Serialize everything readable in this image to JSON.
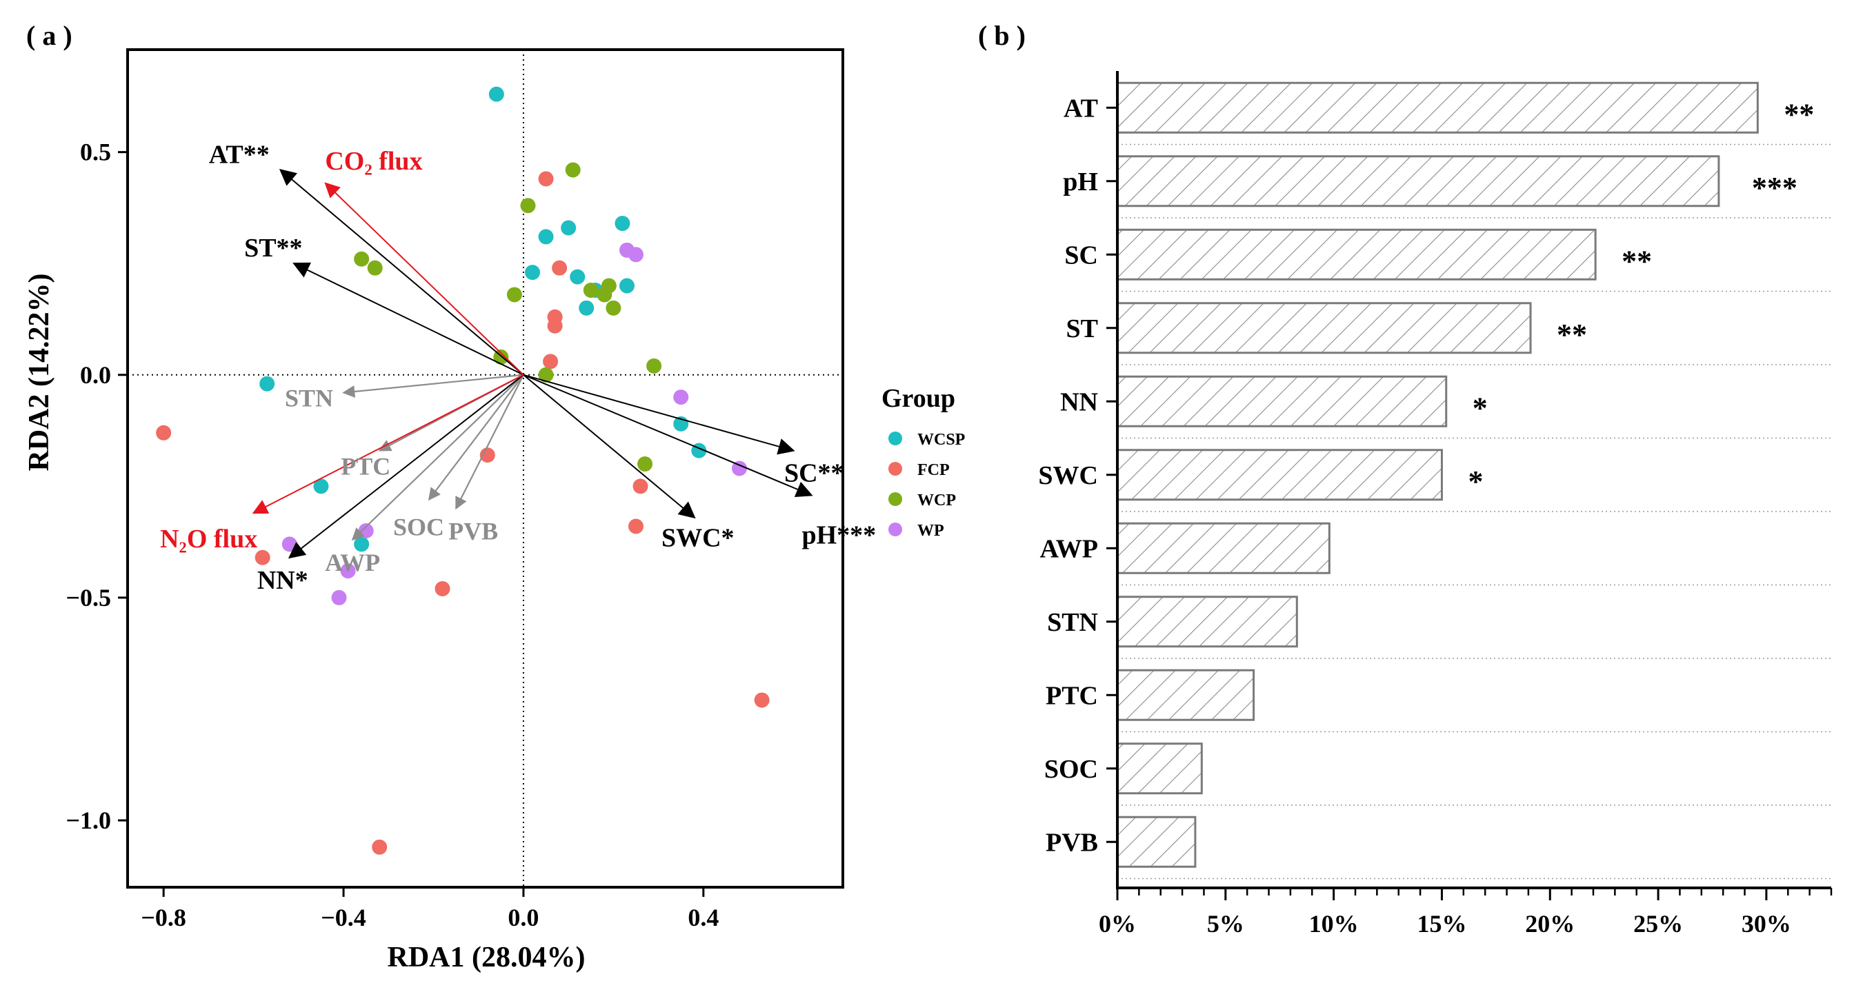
{
  "panel_a_label": "( a )",
  "panel_b_label": "( b )",
  "colors": {
    "axis": "#000000",
    "arrow_black": "#000000",
    "arrow_red": "#e8151e",
    "arrow_gray": "#8c8c8c",
    "label_red": "#e8151e",
    "label_gray": "#8c8c8c",
    "bar_stroke": "#7a7a7a",
    "hatch": "#8a8a8a"
  },
  "chart_data": [
    {
      "type": "scatter",
      "xlabel": "RDA1 (28.04%)",
      "ylabel": "RDA2 (14.22%)",
      "xlim": [
        -0.88,
        0.71
      ],
      "ylim": [
        -1.15,
        0.73
      ],
      "xticks": [
        {
          "value": -0.8,
          "label": "−0.8"
        },
        {
          "value": -0.4,
          "label": "−0.4"
        },
        {
          "value": 0.0,
          "label": "0.0"
        },
        {
          "value": 0.4,
          "label": "0.4"
        }
      ],
      "yticks": [
        {
          "value": 0.5,
          "label": "0.5"
        },
        {
          "value": 0.0,
          "label": "0.0"
        },
        {
          "value": -0.5,
          "label": "−0.5"
        },
        {
          "value": -1.0,
          "label": "−1.0"
        }
      ],
      "reference_lines": "dotted at x=0 and y=0",
      "legend": {
        "title": "Group",
        "placement": "right",
        "entries": [
          {
            "name": "WCSP",
            "color": "#1ebdc1"
          },
          {
            "name": "FCP",
            "color": "#f06b62"
          },
          {
            "name": "WCP",
            "color": "#7fad17"
          },
          {
            "name": "WP",
            "color": "#c77ef2"
          }
        ]
      },
      "series": [
        {
          "name": "WCSP",
          "color": "#1ebdc1",
          "points": [
            [
              -0.06,
              0.63
            ],
            [
              -0.57,
              -0.02
            ],
            [
              0.05,
              0.31
            ],
            [
              0.1,
              0.33
            ],
            [
              0.02,
              0.23
            ],
            [
              0.12,
              0.22
            ],
            [
              0.22,
              0.34
            ],
            [
              0.23,
              0.2
            ],
            [
              0.14,
              0.15
            ],
            [
              0.16,
              0.19
            ],
            [
              0.35,
              -0.11
            ],
            [
              0.39,
              -0.17
            ],
            [
              -0.45,
              -0.25
            ],
            [
              -0.36,
              -0.38
            ]
          ]
        },
        {
          "name": "FCP",
          "color": "#f06b62",
          "points": [
            [
              0.05,
              0.44
            ],
            [
              0.08,
              0.24
            ],
            [
              0.07,
              0.13
            ],
            [
              0.07,
              0.11
            ],
            [
              0.06,
              0.03
            ],
            [
              -0.8,
              -0.13
            ],
            [
              -0.08,
              -0.18
            ],
            [
              0.26,
              -0.25
            ],
            [
              0.25,
              -0.34
            ],
            [
              -0.58,
              -0.41
            ],
            [
              -0.18,
              -0.48
            ],
            [
              0.53,
              -0.73
            ],
            [
              -0.32,
              -1.06
            ]
          ]
        },
        {
          "name": "WCP",
          "color": "#7fad17",
          "points": [
            [
              0.11,
              0.46
            ],
            [
              0.01,
              0.38
            ],
            [
              -0.36,
              0.26
            ],
            [
              -0.33,
              0.24
            ],
            [
              -0.02,
              0.18
            ],
            [
              0.15,
              0.19
            ],
            [
              0.19,
              0.2
            ],
            [
              0.18,
              0.18
            ],
            [
              0.2,
              0.15
            ],
            [
              -0.05,
              0.04
            ],
            [
              0.05,
              0.0
            ],
            [
              0.29,
              0.02
            ],
            [
              0.27,
              -0.2
            ]
          ]
        },
        {
          "name": "WP",
          "color": "#c77ef2",
          "points": [
            [
              0.23,
              0.28
            ],
            [
              0.25,
              0.27
            ],
            [
              0.35,
              -0.05
            ],
            [
              0.48,
              -0.21
            ],
            [
              -0.35,
              -0.35
            ],
            [
              -0.52,
              -0.38
            ],
            [
              -0.39,
              -0.44
            ],
            [
              -0.41,
              -0.5
            ]
          ]
        }
      ],
      "vectors": [
        {
          "label": "AT**",
          "tip": [
            -0.54,
            0.46
          ],
          "style": "black"
        },
        {
          "label": "ST**",
          "tip": [
            -0.51,
            0.25
          ],
          "style": "black"
        },
        {
          "label": "CO₂ flux",
          "tip": [
            -0.44,
            0.43
          ],
          "style": "red"
        },
        {
          "label": "N₂O flux",
          "tip": [
            -0.6,
            -0.31
          ],
          "style": "red"
        },
        {
          "label": "NN*",
          "tip": [
            -0.52,
            -0.41
          ],
          "style": "black"
        },
        {
          "label": "SC**",
          "tip": [
            0.6,
            -0.17
          ],
          "style": "black"
        },
        {
          "label": "pH***",
          "tip": [
            0.64,
            -0.27
          ],
          "style": "black"
        },
        {
          "label": "SWC*",
          "tip": [
            0.38,
            -0.32
          ],
          "style": "black"
        },
        {
          "label": "STN",
          "tip": [
            -0.4,
            -0.04
          ],
          "style": "gray"
        },
        {
          "label": "PTC",
          "tip": [
            -0.32,
            -0.17
          ],
          "style": "gray"
        },
        {
          "label": "SOC",
          "tip": [
            -0.21,
            -0.28
          ],
          "style": "gray"
        },
        {
          "label": "PVB",
          "tip": [
            -0.15,
            -0.3
          ],
          "style": "gray"
        },
        {
          "label": "AWP",
          "tip": [
            -0.38,
            -0.37
          ],
          "style": "gray"
        }
      ]
    },
    {
      "type": "bar",
      "orientation": "horizontal",
      "categories": [
        "AT",
        "pH",
        "SC",
        "ST",
        "NN",
        "SWC",
        "AWP",
        "STN",
        "PTC",
        "SOC",
        "PVB"
      ],
      "values": [
        29.6,
        27.8,
        22.1,
        19.1,
        15.2,
        15.0,
        9.8,
        8.3,
        6.3,
        3.9,
        3.6
      ],
      "significance": [
        "**",
        "***",
        "**",
        "**",
        "*",
        "*",
        "",
        "",
        "",
        "",
        ""
      ],
      "xlim": [
        0,
        33
      ],
      "xticks": [
        {
          "value": 0,
          "label": "0%"
        },
        {
          "value": 5,
          "label": "5%"
        },
        {
          "value": 10,
          "label": "10%"
        },
        {
          "value": 15,
          "label": "15%"
        },
        {
          "value": 20,
          "label": "20%"
        },
        {
          "value": 25,
          "label": "25%"
        },
        {
          "value": 30,
          "label": "30%"
        }
      ],
      "fill": "diagonal hatch",
      "grid": "dotted horizontal separators"
    }
  ]
}
